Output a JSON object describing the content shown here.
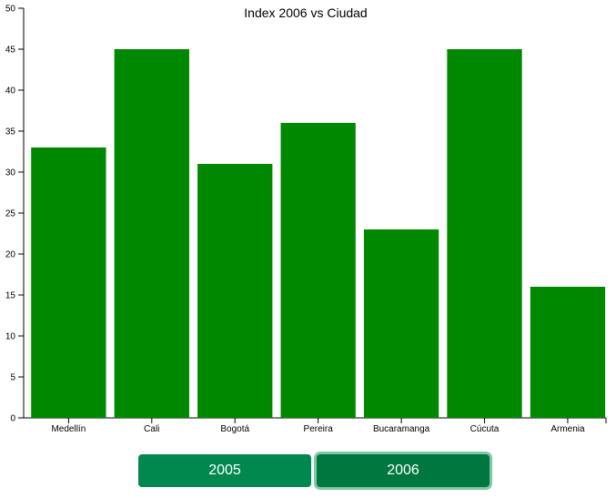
{
  "chart_data": {
    "type": "bar",
    "title": "Index 2006 vs Ciudad",
    "xlabel": "",
    "ylabel": "",
    "categories": [
      "Medellín",
      "Cali",
      "Bogotá",
      "Pereira",
      "Bucaramanga",
      "Cúcuta",
      "Armenia"
    ],
    "values": [
      33,
      45,
      31,
      36,
      23,
      45,
      16
    ],
    "ylim": [
      0,
      50
    ],
    "yticks": [
      0,
      5,
      10,
      15,
      20,
      25,
      30,
      35,
      40,
      45,
      50
    ],
    "grid": false,
    "bar_color": "#008800"
  },
  "controls": {
    "buttons": [
      {
        "label": "2005",
        "color": "#00884f"
      },
      {
        "label": "2006",
        "color": "#00773f",
        "selected": true
      }
    ]
  }
}
